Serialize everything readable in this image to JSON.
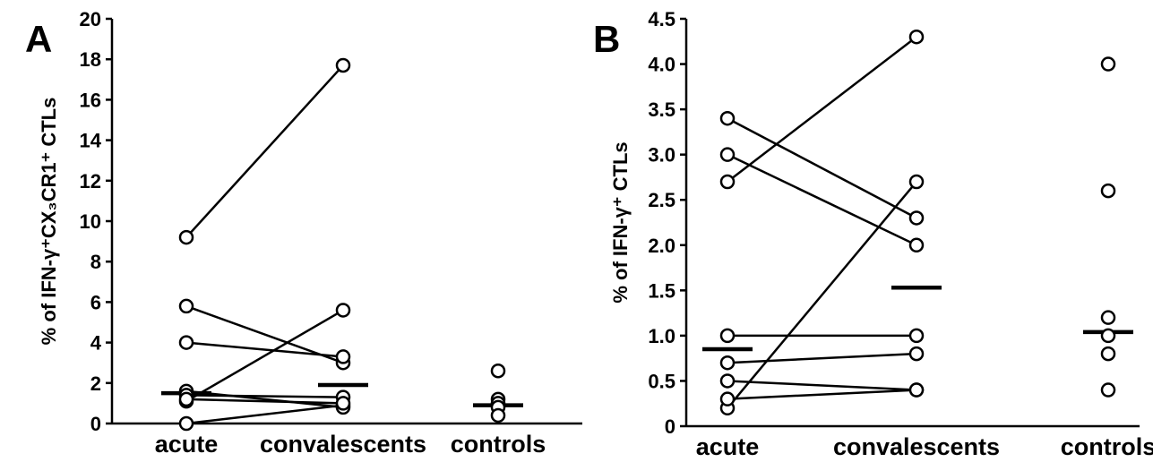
{
  "chart_data": [
    {
      "type": "paired-dot",
      "panel": "A",
      "ylabel": "% of IFN-γ⁺CX₃CR1⁺ CTLs",
      "categories": [
        "acute",
        "convalescents",
        "controls"
      ],
      "ylim": [
        0,
        20
      ],
      "yticks": [
        0,
        2,
        4,
        6,
        8,
        10,
        12,
        14,
        16,
        18,
        20
      ],
      "pairs": [
        [
          9.2,
          17.7
        ],
        [
          5.8,
          3.0
        ],
        [
          4.0,
          3.3
        ],
        [
          1.1,
          5.6
        ],
        [
          0,
          0.9
        ],
        [
          1.6,
          0.8
        ],
        [
          1.4,
          1.3
        ],
        [
          1.2,
          1.0
        ]
      ],
      "controls": [
        2.6,
        1.2,
        1.0,
        0.8,
        0.4
      ],
      "means": [
        1.5,
        1.9,
        0.9
      ]
    },
    {
      "type": "paired-dot",
      "panel": "B",
      "ylabel": "% of IFN-γ⁺ CTLs",
      "categories": [
        "acute",
        "convalescents",
        "controls"
      ],
      "ylim": [
        0,
        4.5
      ],
      "yticks": [
        0,
        0.5,
        {
          "value": 1,
          "label": "1.0"
        },
        1.5,
        {
          "value": 2,
          "label": "2.0"
        },
        2.5,
        {
          "value": 3,
          "label": "3.0"
        },
        3.5,
        {
          "value": 4,
          "label": "4.0"
        },
        4.5
      ],
      "pairs": [
        [
          3.4,
          2.3
        ],
        [
          3.0,
          2.0
        ],
        [
          2.7,
          4.3
        ],
        [
          0.2,
          2.7
        ],
        [
          1.0,
          1.0
        ],
        [
          0.7,
          0.8
        ],
        [
          0.5,
          0.4
        ],
        [
          0.3,
          0.4
        ]
      ],
      "controls": [
        4.0,
        2.6,
        1.2,
        1.0,
        0.8,
        0.4
      ],
      "means": [
        0.85,
        1.53,
        1.04
      ]
    }
  ]
}
